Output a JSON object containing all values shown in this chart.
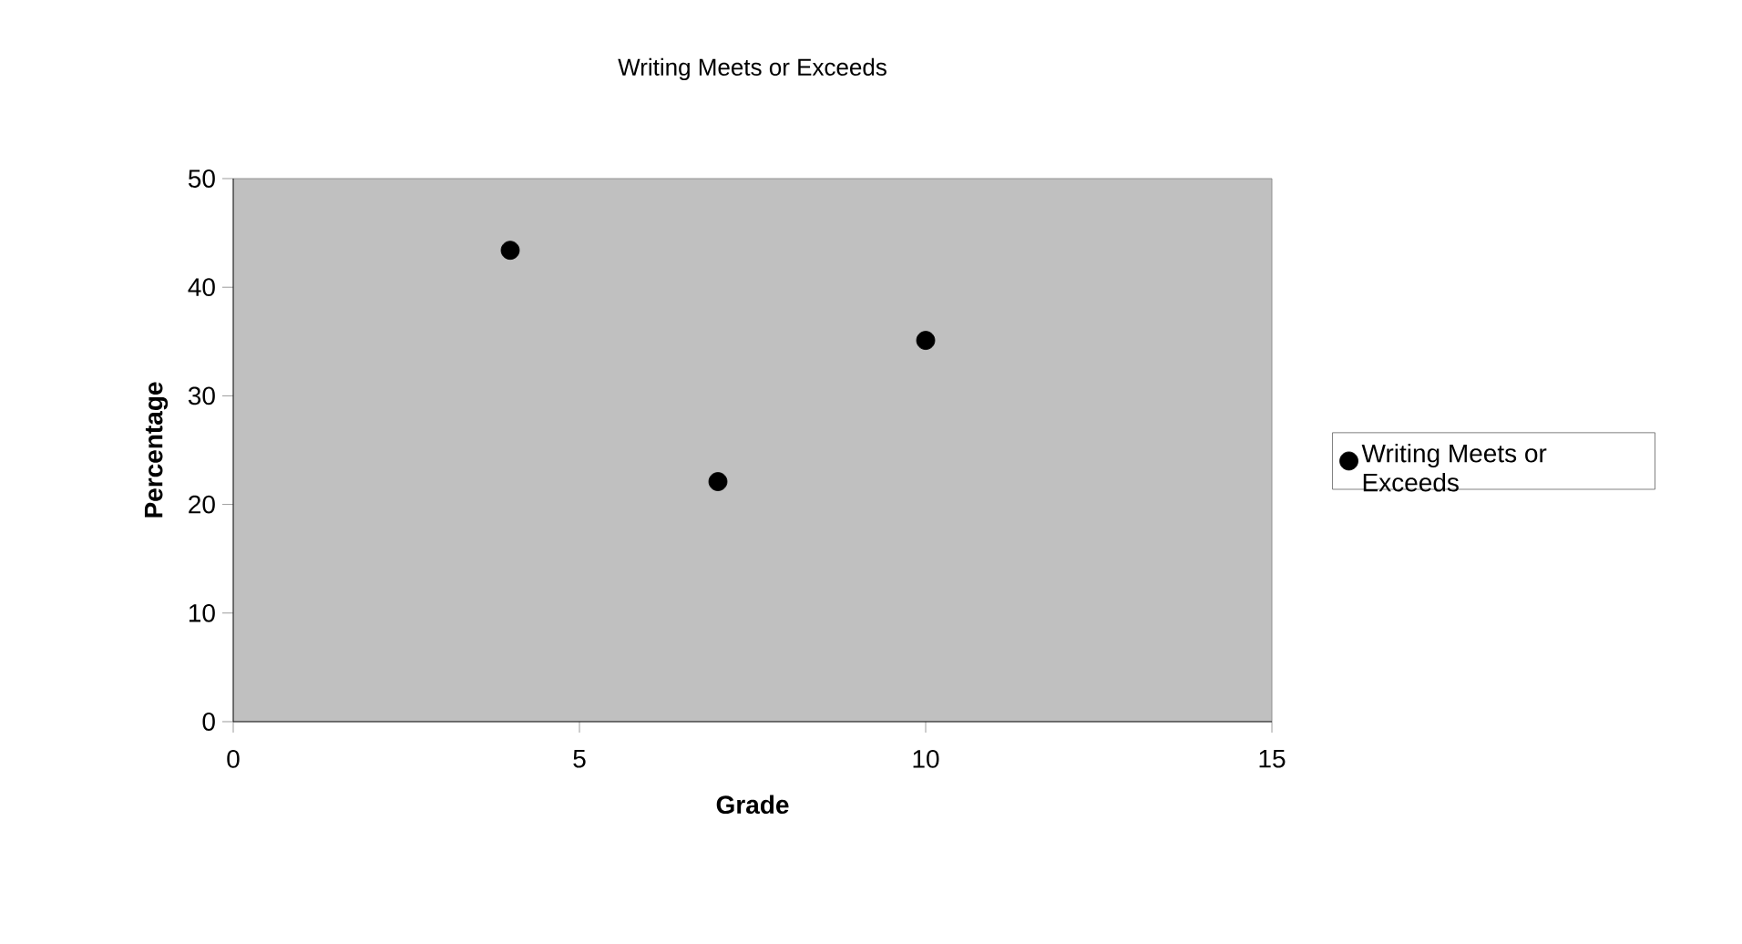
{
  "chart_data": {
    "type": "scatter",
    "title": "Writing Meets or Exceeds",
    "xlabel": "Grade",
    "ylabel": "Percentage",
    "x": [
      4,
      7,
      10
    ],
    "series": [
      {
        "name": "Writing Meets or Exceeds",
        "color": "#000000",
        "values": [
          43.4,
          22.1,
          35.1
        ]
      }
    ],
    "xlim": [
      0,
      15
    ],
    "xticks": [
      0,
      5,
      10,
      15
    ],
    "ylim": [
      0,
      50
    ],
    "yticks": [
      0,
      10,
      20,
      30,
      40,
      50
    ],
    "marker": "circle",
    "legend": "right",
    "grid": false
  }
}
